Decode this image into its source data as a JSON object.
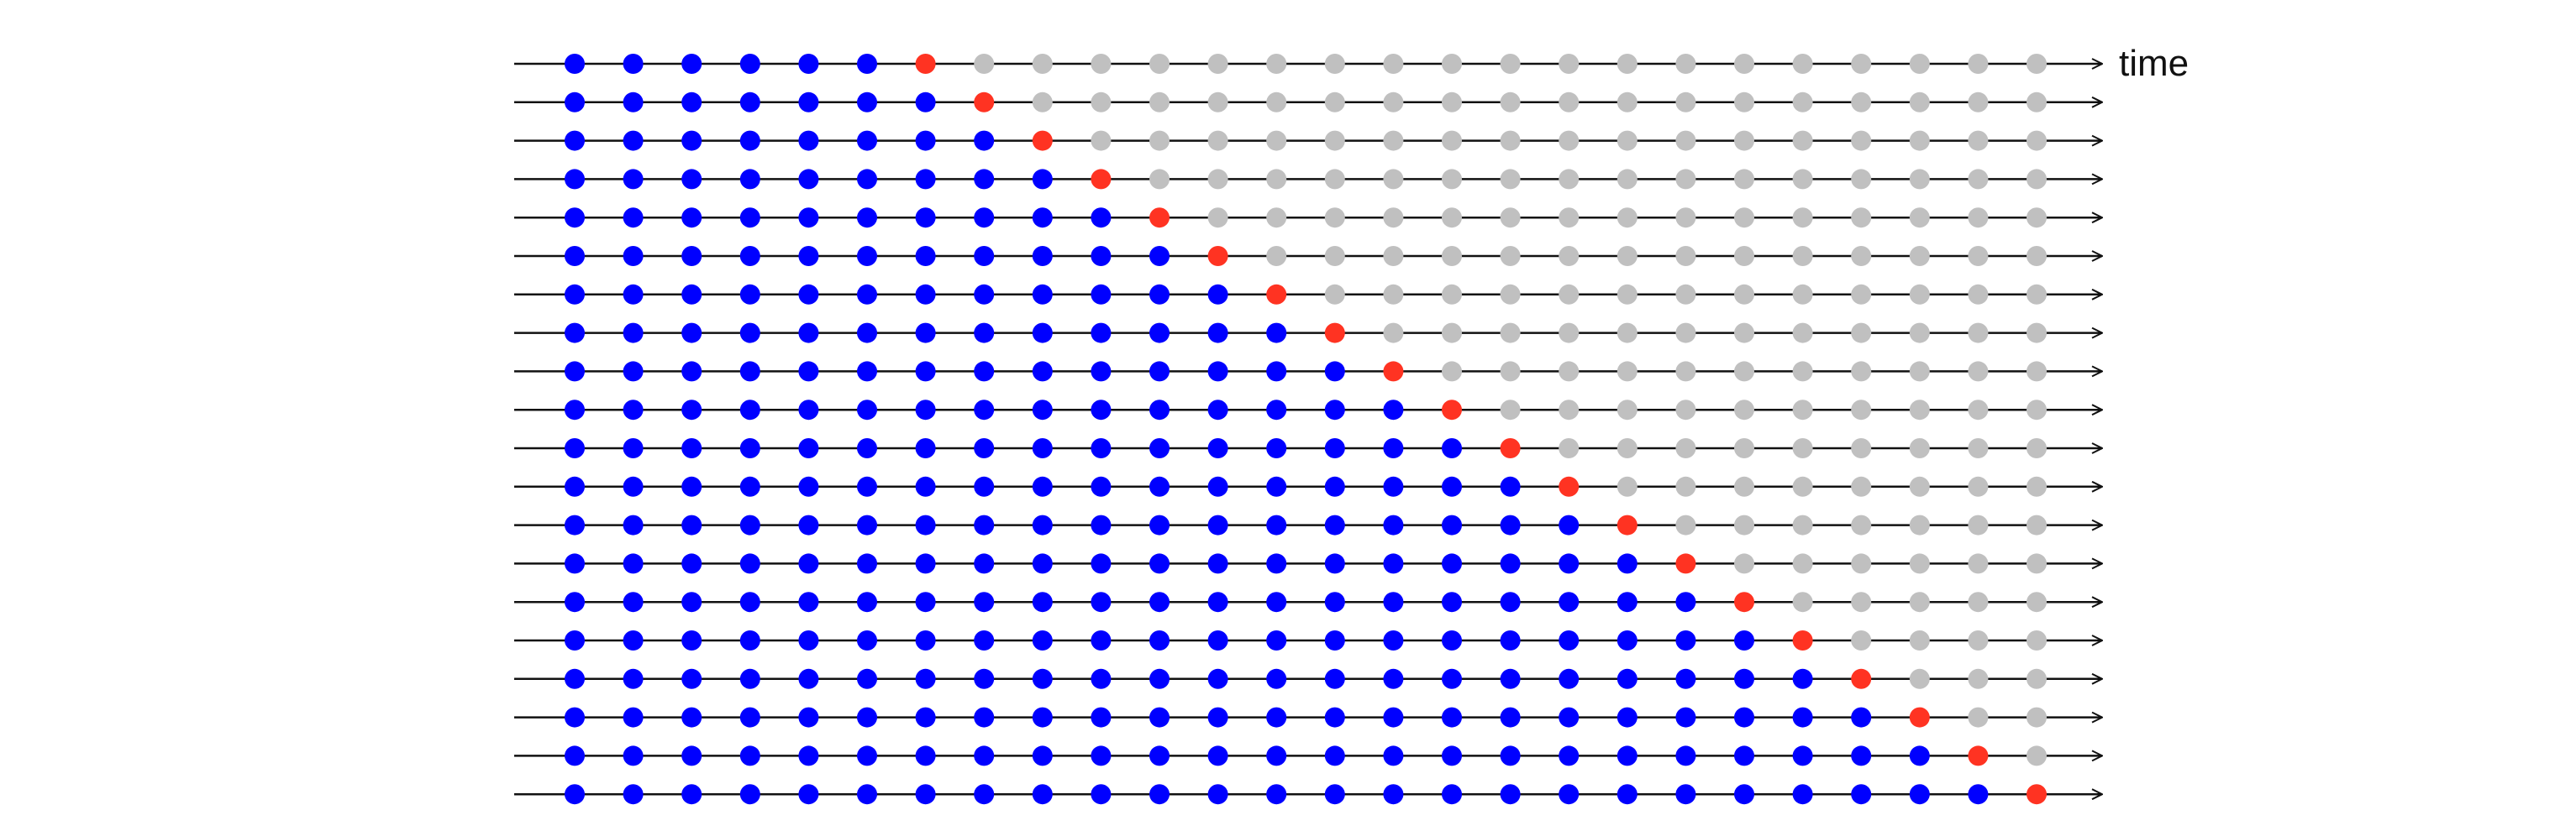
{
  "diagram": {
    "axis_label": "time",
    "num_rows": 20,
    "num_points": 26,
    "first_test_index": 6,
    "colors": {
      "train": "#0000ff",
      "test": "#ff3322",
      "unused": "#c0c0c0",
      "axis": "#111111"
    }
  }
}
